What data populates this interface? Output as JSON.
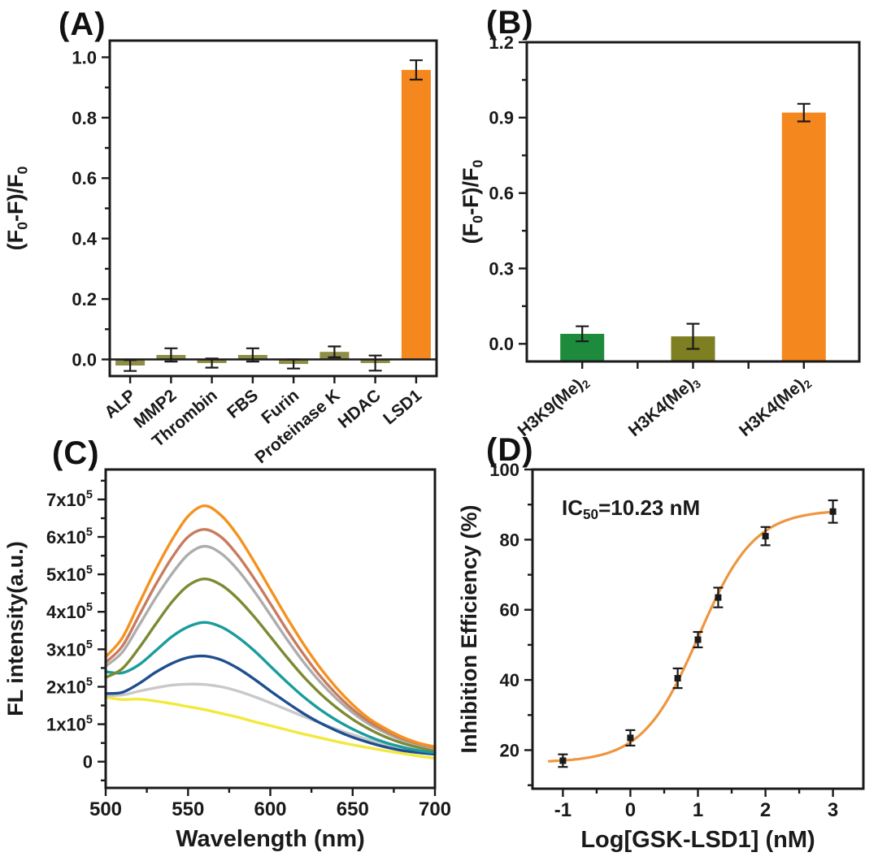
{
  "figure": {
    "background": "#ffffff",
    "axis_color": "#1a1a1a"
  },
  "chart_data": [
    {
      "id": "A",
      "tag": "(A)",
      "type": "bar",
      "ylabel": [
        {
          "t": "(F"
        },
        {
          "sub": "0"
        },
        {
          "t": "-F)/F"
        },
        {
          "sub": "0"
        }
      ],
      "categories": [
        [
          {
            "t": "ALP"
          }
        ],
        [
          {
            "t": "MMP2"
          }
        ],
        [
          {
            "t": "Thrombin"
          }
        ],
        [
          {
            "t": "FBS"
          }
        ],
        [
          {
            "t": "Furin"
          }
        ],
        [
          {
            "t": "Proteinase K"
          }
        ],
        [
          {
            "t": "HDAC"
          }
        ],
        [
          {
            "t": "LSD1"
          }
        ]
      ],
      "values": [
        -0.02,
        0.015,
        -0.012,
        0.015,
        -0.015,
        0.025,
        -0.012,
        0.958
      ],
      "errors": [
        0.018,
        0.022,
        0.015,
        0.022,
        0.015,
        0.018,
        0.025,
        0.032
      ],
      "bar_colors": [
        "#8E8E48",
        "#8E8E48",
        "#8E8E48",
        "#8E8E48",
        "#8E8E48",
        "#8E8E48",
        "#8E8E48",
        "#F5871F"
      ],
      "ylim": [
        -0.055,
        1.055
      ],
      "yticks": [
        {
          "v": 0.0,
          "label": [
            {
              "t": "0.0"
            }
          ]
        },
        {
          "v": 0.2,
          "label": [
            {
              "t": "0.2"
            }
          ]
        },
        {
          "v": 0.4,
          "label": [
            {
              "t": "0.4"
            }
          ]
        },
        {
          "v": 0.6,
          "label": [
            {
              "t": "0.6"
            }
          ]
        },
        {
          "v": 0.8,
          "label": [
            {
              "t": "0.8"
            }
          ]
        },
        {
          "v": 1.0,
          "label": [
            {
              "t": "1.0"
            }
          ]
        }
      ],
      "ymajor_step": 0.2,
      "yminor_step": 0.1,
      "zero_line": true,
      "baseline": "zero"
    },
    {
      "id": "B",
      "tag": "(B)",
      "type": "bar",
      "ylabel": [
        {
          "t": "(F"
        },
        {
          "sub": "0"
        },
        {
          "t": "-F)/F"
        },
        {
          "sub": "0"
        }
      ],
      "categories": [
        [
          {
            "t": "H3K9(Me)"
          },
          {
            "sub": "2"
          }
        ],
        [
          {
            "t": "H3K4(Me)"
          },
          {
            "sub": "3"
          }
        ],
        [
          {
            "t": "H3K4(Me)"
          },
          {
            "sub": "2"
          }
        ]
      ],
      "values": [
        0.04,
        0.03,
        0.92
      ],
      "errors": [
        0.03,
        0.05,
        0.035
      ],
      "bar_colors": [
        "#1E8A3C",
        "#7E7E22",
        "#F5871F"
      ],
      "ylim": [
        -0.07,
        1.2
      ],
      "yticks": [
        {
          "v": 0.0,
          "label": [
            {
              "t": "0.0"
            }
          ]
        },
        {
          "v": 0.3,
          "label": [
            {
              "t": "0.3"
            }
          ]
        },
        {
          "v": 0.6,
          "label": [
            {
              "t": "0.6"
            }
          ]
        },
        {
          "v": 0.9,
          "label": [
            {
              "t": "0.9"
            }
          ]
        },
        {
          "v": 1.2,
          "label": [
            {
              "t": "1.2"
            }
          ]
        }
      ],
      "ymajor_step": 0.3,
      "yminor_step": 0.15,
      "zero_line": false,
      "baseline": "min",
      "boundary_ticks": true
    },
    {
      "id": "C",
      "tag": "(C)",
      "type": "line",
      "xlabel": "Wavelength (nm)",
      "ylabel": [
        {
          "t": "FL intensity(a.u.)"
        }
      ],
      "xlim": [
        500,
        700
      ],
      "xticks": [
        {
          "v": 500,
          "label": [
            {
              "t": "500"
            }
          ]
        },
        {
          "v": 550,
          "label": [
            {
              "t": "550"
            }
          ]
        },
        {
          "v": 600,
          "label": [
            {
              "t": "600"
            }
          ]
        },
        {
          "v": 650,
          "label": [
            {
              "t": "650"
            }
          ]
        },
        {
          "v": 700,
          "label": [
            {
              "t": "700"
            }
          ]
        }
      ],
      "xmajor_step": 50,
      "xminor_step": 25,
      "ylim": [
        -70000,
        780000
      ],
      "yticks": [
        {
          "v": 0,
          "label": [
            {
              "t": "0"
            }
          ]
        },
        {
          "v": 100000,
          "label": [
            {
              "t": "1x10"
            },
            {
              "sup": "5"
            }
          ]
        },
        {
          "v": 200000,
          "label": [
            {
              "t": "2x10"
            },
            {
              "sup": "5"
            }
          ]
        },
        {
          "v": 300000,
          "label": [
            {
              "t": "3x10"
            },
            {
              "sup": "5"
            }
          ]
        },
        {
          "v": 400000,
          "label": [
            {
              "t": "4x10"
            },
            {
              "sup": "5"
            }
          ]
        },
        {
          "v": 500000,
          "label": [
            {
              "t": "5x10"
            },
            {
              "sup": "5"
            }
          ]
        },
        {
          "v": 600000,
          "label": [
            {
              "t": "6x10"
            },
            {
              "sup": "5"
            }
          ]
        },
        {
          "v": 700000,
          "label": [
            {
              "t": "7x10"
            },
            {
              "sup": "5"
            }
          ]
        }
      ],
      "ymajor_step": 100000,
      "yminor_step": 50000,
      "x_points": [
        500,
        510,
        520,
        530,
        540,
        550,
        560,
        570,
        580,
        590,
        600,
        610,
        620,
        630,
        640,
        650,
        660,
        670,
        680,
        690,
        700
      ],
      "series": [
        {
          "name": "curve-1-orange",
          "color": "#F5921E",
          "y": [
            280000,
            330000,
            420000,
            510000,
            590000,
            655000,
            683000,
            658000,
            605000,
            535000,
            460000,
            385000,
            315000,
            252000,
            198000,
            152000,
            115000,
            88000,
            66000,
            50000,
            40000
          ]
        },
        {
          "name": "curve-2-salmon",
          "color": "#C87C5F",
          "y": [
            265000,
            308000,
            388000,
            470000,
            543000,
            600000,
            620000,
            600000,
            552000,
            490000,
            422000,
            352000,
            288000,
            230000,
            181000,
            140000,
            107000,
            82000,
            62000,
            48000,
            38000
          ]
        },
        {
          "name": "curve-3-gray",
          "color": "#ADADAD",
          "y": [
            255000,
            292000,
            362000,
            435000,
            500000,
            553000,
            575000,
            556000,
            513000,
            456000,
            392000,
            327000,
            267000,
            214000,
            169000,
            131000,
            100000,
            77000,
            58000,
            45000,
            35000
          ]
        },
        {
          "name": "curve-4-olive",
          "color": "#7C8A33",
          "y": [
            225000,
            248000,
            302000,
            365000,
            425000,
            470000,
            488000,
            472000,
            436000,
            388000,
            334000,
            279000,
            228000,
            183000,
            145000,
            113000,
            87000,
            66000,
            50000,
            38000,
            30000
          ]
        },
        {
          "name": "curve-5-teal",
          "color": "#1A9C9C",
          "y": [
            240000,
            237000,
            258000,
            295000,
            333000,
            360000,
            372000,
            360000,
            333000,
            297000,
            255000,
            213000,
            174000,
            140000,
            111000,
            87000,
            67000,
            51000,
            39000,
            30000,
            24000
          ]
        },
        {
          "name": "curve-6-navy",
          "color": "#1F4E8F",
          "y": [
            182000,
            185000,
            208000,
            238000,
            262000,
            278000,
            282000,
            272000,
            250000,
            221000,
            189000,
            158000,
            129000,
            104000,
            83000,
            65000,
            51000,
            39000,
            30000,
            24000,
            20000
          ]
        },
        {
          "name": "curve-7-lightgray",
          "color": "#C9C9C9",
          "y": [
            176000,
            178000,
            188000,
            197000,
            204000,
            207000,
            206000,
            200000,
            189000,
            174000,
            157000,
            139000,
            121000,
            104000,
            87000,
            72000,
            58000,
            46000,
            35000,
            27000,
            20000
          ]
        },
        {
          "name": "curve-8-yellow",
          "color": "#F2E93C",
          "y": [
            172000,
            166000,
            167000,
            162000,
            155000,
            147000,
            139000,
            129000,
            119000,
            107000,
            96000,
            85000,
            74000,
            64000,
            54000,
            45000,
            37000,
            29000,
            22000,
            15000,
            9000
          ]
        }
      ]
    },
    {
      "id": "D",
      "tag": "(D)",
      "type": "scatter",
      "xlabel": "Log[GSK-LSD1] (nM)",
      "ylabel": [
        {
          "t": "Inhibition Efficiency (%)"
        }
      ],
      "annotation": [
        {
          "t": "IC"
        },
        {
          "sub": "50"
        },
        {
          "t": "=10.23 nM"
        }
      ],
      "xlim": [
        -1.45,
        3.45
      ],
      "xticks": [
        {
          "v": -1,
          "label": [
            {
              "t": "-1"
            }
          ]
        },
        {
          "v": 0,
          "label": [
            {
              "t": "0"
            }
          ]
        },
        {
          "v": 1,
          "label": [
            {
              "t": "1"
            }
          ]
        },
        {
          "v": 2,
          "label": [
            {
              "t": "2"
            }
          ]
        },
        {
          "v": 3,
          "label": [
            {
              "t": "3"
            }
          ]
        }
      ],
      "xmajor_step": 1,
      "xminor_step": 0.5,
      "ylim": [
        9,
        100
      ],
      "yticks": [
        {
          "v": 20,
          "label": [
            {
              "t": "20"
            }
          ]
        },
        {
          "v": 40,
          "label": [
            {
              "t": "40"
            }
          ]
        },
        {
          "v": 60,
          "label": [
            {
              "t": "60"
            }
          ]
        },
        {
          "v": 80,
          "label": [
            {
              "t": "80"
            }
          ]
        },
        {
          "v": 100,
          "label": [
            {
              "t": "100"
            }
          ]
        }
      ],
      "ymajor_step": 20,
      "yminor_step": 10,
      "points": {
        "x": [
          -1,
          0,
          0.7,
          1,
          1.3,
          2,
          3
        ],
        "y": [
          17,
          23.5,
          40.5,
          51.5,
          63.5,
          81,
          88
        ],
        "err": [
          1.8,
          2.2,
          2.8,
          2.2,
          2.8,
          2.6,
          3.2
        ]
      },
      "fit": {
        "bottom": 16.5,
        "top": 88.5,
        "logIC50": 1.01,
        "hill": 1.05,
        "range": [
          -1.22,
          3.0
        ]
      },
      "fit_color": "#EE9640",
      "marker_color": "#1a1a1a"
    }
  ]
}
